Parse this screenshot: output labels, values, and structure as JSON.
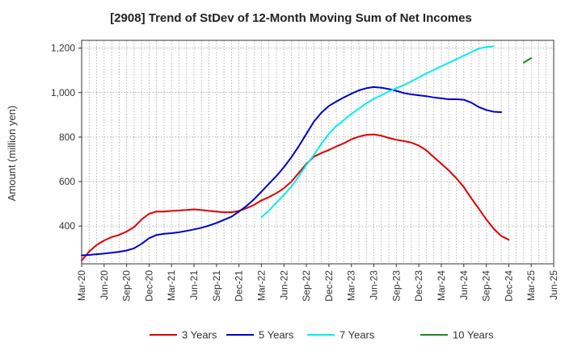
{
  "chart_data": {
    "type": "line",
    "title": "[2908]  Trend of StDev of 12-Month Moving Sum of Net Incomes",
    "ylabel": "Amount (million yen)",
    "xlabel": "",
    "ylim": [
      230,
      1235
    ],
    "y_ticks": [
      400,
      600,
      800,
      1000,
      1200
    ],
    "y_tick_labels": [
      "400",
      "600",
      "800",
      "1,000",
      "1,200"
    ],
    "x_ticks": [
      "Mar-20",
      "Jun-20",
      "Sep-20",
      "Dec-20",
      "Mar-21",
      "Jun-21",
      "Sep-21",
      "Dec-21",
      "Mar-22",
      "Jun-22",
      "Sep-22",
      "Dec-22",
      "Mar-23",
      "Jun-23",
      "Sep-23",
      "Dec-23",
      "Mar-24",
      "Jun-24",
      "Sep-24",
      "Dec-24",
      "Mar-25",
      "Jun-25"
    ],
    "x_start": "Mar-20",
    "grid": true,
    "legend_position": "bottom",
    "series": [
      {
        "name": "3 Years",
        "color": "#dd0000",
        "start": "Mar-20",
        "values": [
          245,
          285,
          315,
          335,
          350,
          360,
          375,
          395,
          430,
          455,
          465,
          465,
          468,
          470,
          472,
          475,
          472,
          468,
          465,
          462,
          462,
          468,
          480,
          495,
          515,
          530,
          548,
          570,
          600,
          640,
          680,
          712,
          728,
          742,
          758,
          772,
          790,
          802,
          810,
          812,
          806,
          796,
          788,
          782,
          775,
          762,
          740,
          710,
          680,
          650,
          615,
          575,
          525,
          478,
          430,
          388,
          355,
          338
        ]
      },
      {
        "name": "5 Years",
        "color": "#0000cc",
        "start": "Mar-20",
        "values": [
          268,
          270,
          273,
          276,
          280,
          284,
          290,
          300,
          320,
          345,
          360,
          365,
          368,
          372,
          378,
          385,
          392,
          402,
          414,
          428,
          442,
          465,
          490,
          520,
          555,
          590,
          625,
          665,
          710,
          760,
          815,
          870,
          910,
          940,
          960,
          978,
          995,
          1010,
          1020,
          1025,
          1022,
          1016,
          1008,
          998,
          992,
          988,
          984,
          978,
          974,
          970,
          970,
          968,
          955,
          935,
          922,
          914,
          912
        ]
      },
      {
        "name": "7 Years",
        "color": "#00eeee",
        "start": "Mar-22",
        "values": [
          440,
          470,
          505,
          540,
          578,
          625,
          675,
          720,
          770,
          815,
          850,
          876,
          904,
          928,
          952,
          972,
          988,
          1005,
          1020,
          1034,
          1050,
          1068,
          1086,
          1102,
          1118,
          1134,
          1150,
          1166,
          1182,
          1198,
          1205,
          1208
        ]
      },
      {
        "name": "10 Years",
        "color": "#228822",
        "start": "Feb-25",
        "values": [
          1135,
          1155
        ]
      }
    ]
  }
}
